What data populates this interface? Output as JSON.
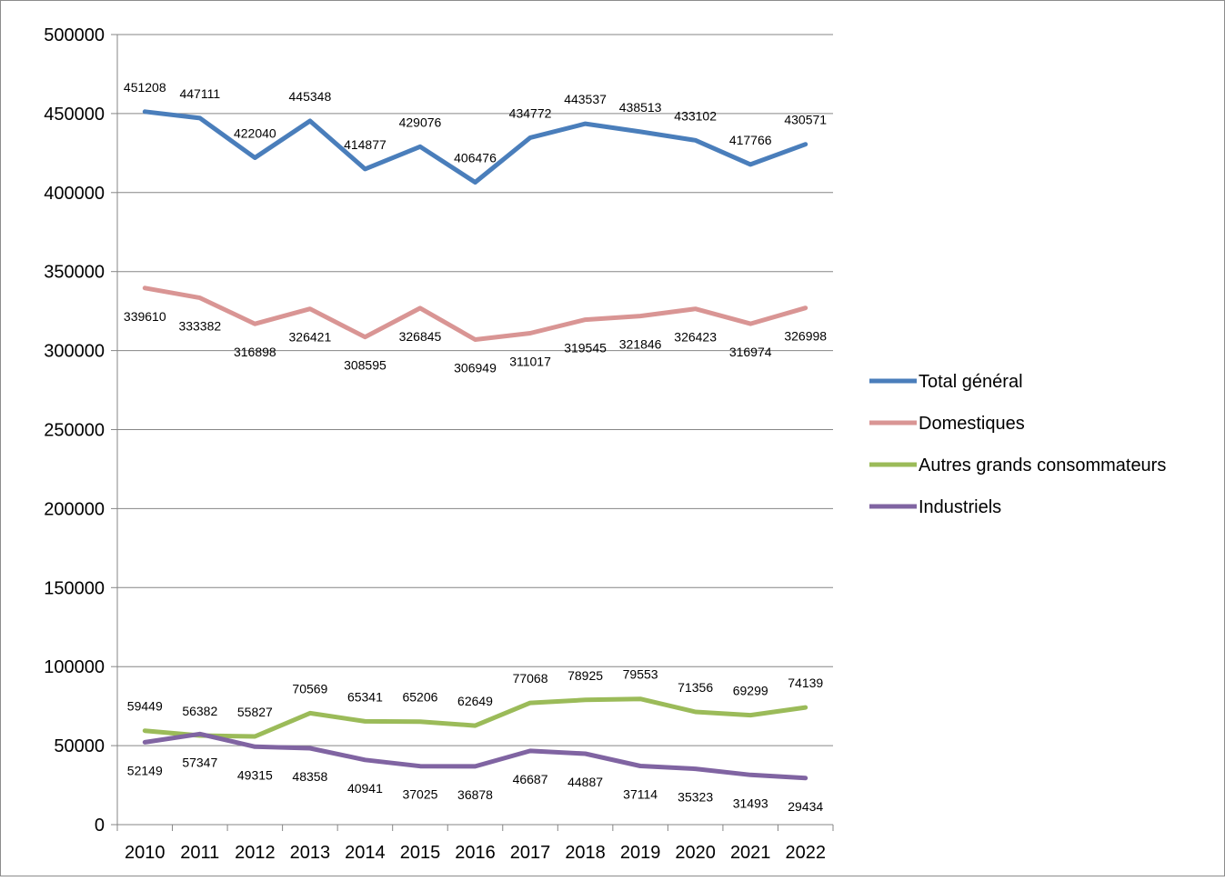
{
  "chart_data": {
    "type": "line",
    "title": "",
    "xlabel": "",
    "ylabel": "",
    "categories": [
      "2010",
      "2011",
      "2012",
      "2013",
      "2014",
      "2015",
      "2016",
      "2017",
      "2018",
      "2019",
      "2020",
      "2021",
      "2022"
    ],
    "ylim": [
      0,
      500000
    ],
    "yticks": [
      0,
      50000,
      100000,
      150000,
      200000,
      250000,
      300000,
      350000,
      400000,
      450000,
      500000
    ],
    "grid": true,
    "legend_position": "right",
    "series": [
      {
        "name": "Total général",
        "color": "#4a7ebb",
        "label_position": "above",
        "values": [
          451208,
          447111,
          422040,
          445348,
          414877,
          429076,
          406476,
          434772,
          443537,
          438513,
          433102,
          417766,
          430571
        ]
      },
      {
        "name": "Domestiques",
        "color": "#d99594",
        "label_position": "below",
        "values": [
          339610,
          333382,
          316898,
          326421,
          308595,
          326845,
          306949,
          311017,
          319545,
          321846,
          326423,
          316974,
          326998
        ]
      },
      {
        "name": "Autres grands consommateurs",
        "color": "#9bbb59",
        "label_position": "above",
        "values": [
          59449,
          56382,
          55827,
          70569,
          65341,
          65206,
          62649,
          77068,
          78925,
          79553,
          71356,
          69299,
          74139
        ]
      },
      {
        "name": "Industriels",
        "color": "#8064a2",
        "label_position": "below",
        "values": [
          52149,
          57347,
          49315,
          48358,
          40941,
          37025,
          36878,
          46687,
          44887,
          37114,
          35323,
          31493,
          29434
        ]
      }
    ]
  }
}
